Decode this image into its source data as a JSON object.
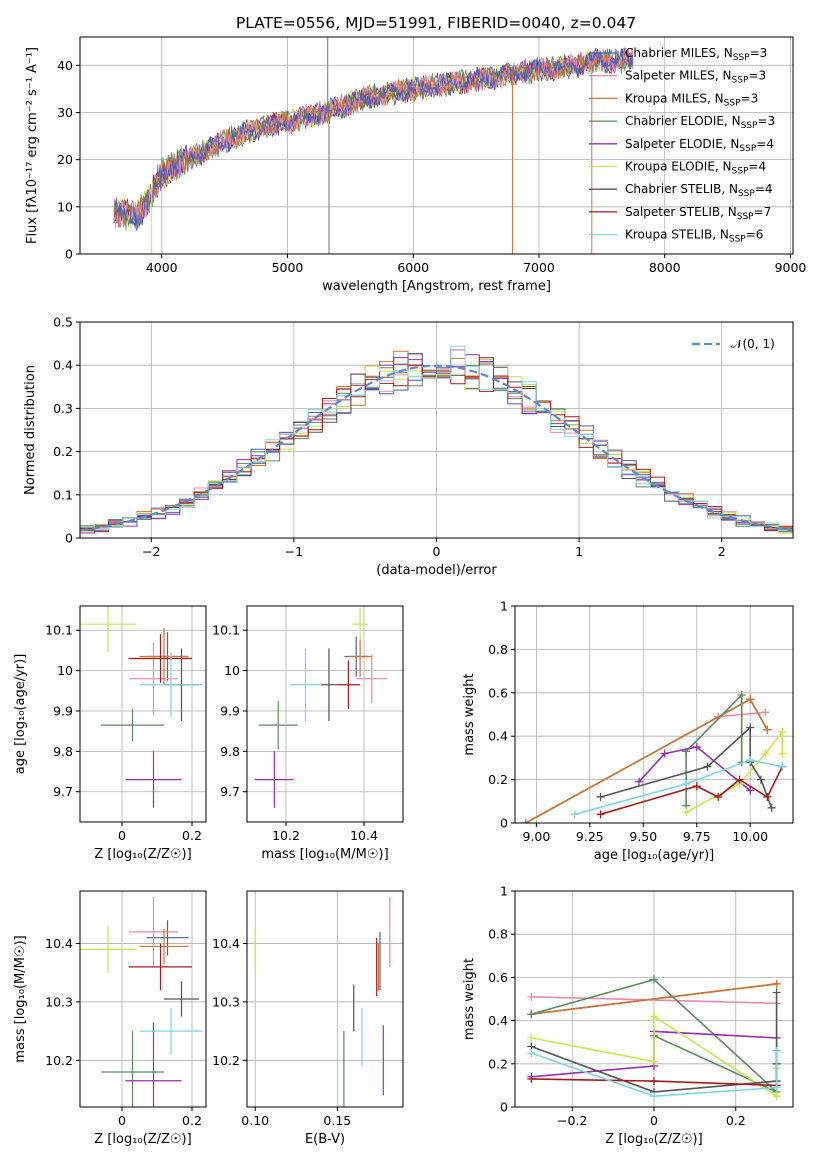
{
  "page_title": "PLATE=0556, MJD=51991, FIBERID=0040, z=0.047",
  "colors": {
    "Chabrier MILES": "#4a5fb8",
    "Salpeter MILES": "#e98ab0",
    "Kroupa MILES": "#d2762a",
    "Chabrier ELODIE": "#5b8a5e",
    "Salpeter ELODIE": "#9a2fb0",
    "Kroupa ELODIE": "#cfe34a",
    "Chabrier STELIB": "#555555",
    "Salpeter STELIB": "#aa1a1a",
    "Kroupa STELIB": "#7fd6e0",
    "normal": "#5b8bd0"
  },
  "legend_spectrum": [
    {
      "name": "Chabrier MILES",
      "pre": "Chabrier MILES, N",
      "sub": "SSP",
      "post": "=3"
    },
    {
      "name": "Salpeter MILES",
      "pre": "Salpeter MILES, N",
      "sub": "SSP",
      "post": "=3"
    },
    {
      "name": "Kroupa MILES",
      "pre": "Kroupa MILES, N",
      "sub": "SSP",
      "post": "=3"
    },
    {
      "name": "Chabrier ELODIE",
      "pre": "Chabrier ELODIE, N",
      "sub": "SSP",
      "post": "=3"
    },
    {
      "name": "Salpeter ELODIE",
      "pre": "Salpeter ELODIE, N",
      "sub": "SSP",
      "post": "=4"
    },
    {
      "name": "Kroupa ELODIE",
      "pre": "Kroupa ELODIE, N",
      "sub": "SSP",
      "post": "=4"
    },
    {
      "name": "Chabrier STELIB",
      "pre": "Chabrier STELIB, N",
      "sub": "SSP",
      "post": "=4"
    },
    {
      "name": "Salpeter STELIB",
      "pre": "Salpeter STELIB, N",
      "sub": "SSP",
      "post": "=7"
    },
    {
      "name": "Kroupa STELIB",
      "pre": "Kroupa STELIB, N",
      "sub": "SSP",
      "post": "=6"
    }
  ],
  "chart_data": [
    {
      "id": "spectrum",
      "type": "line",
      "xlabel": "wavelength [Angstrom, rest frame]",
      "ylabel": "Flux [fλ10⁻¹⁷ erg cm⁻² s⁻¹ A⁻¹]",
      "xlim": [
        3350,
        9020
      ],
      "ylim": [
        0,
        46
      ],
      "xticks": [
        4000,
        5000,
        6000,
        7000,
        8000,
        9000
      ],
      "yticks": [
        0,
        10,
        20,
        30,
        40
      ],
      "continuum": [
        [
          3620,
          9
        ],
        [
          3800,
          8
        ],
        [
          3900,
          12
        ],
        [
          4000,
          17
        ],
        [
          4200,
          20
        ],
        [
          4500,
          24
        ],
        [
          4800,
          27
        ],
        [
          5000,
          28
        ],
        [
          5300,
          30
        ],
        [
          5600,
          33
        ],
        [
          6000,
          35
        ],
        [
          6500,
          37
        ],
        [
          7000,
          39
        ],
        [
          7300,
          40
        ],
        [
          7450,
          41
        ],
        [
          7700,
          41
        ]
      ],
      "spikes": [
        [
          5320,
          46
        ],
        [
          5330,
          0
        ],
        [
          3920,
          0
        ],
        [
          6790,
          0
        ],
        [
          7420,
          0
        ]
      ],
      "wave_min": 3620,
      "wave_max": 7750
    },
    {
      "id": "residuals",
      "type": "histogram",
      "xlabel": "(data-model)/error",
      "ylabel": "Normed distribution",
      "xlim": [
        -2.5,
        2.5
      ],
      "ylim": [
        0,
        0.5
      ],
      "xticks": [
        -2,
        -1,
        0,
        1,
        2
      ],
      "yticks": [
        0,
        0.1,
        0.2,
        0.3,
        0.4,
        0.5
      ],
      "bin_width": 0.1,
      "bins_from": -2.5,
      "normal_curve": {
        "name": "N(0,1)",
        "mean": 0,
        "sigma": 1
      },
      "legend_label": "𝒩(0, 1)"
    },
    {
      "id": "age-vs-Z",
      "type": "errorbar",
      "xlabel": "Z [log₁₀(Z/Z☉)]",
      "ylabel": "age  [log₁₀(age/yr)]",
      "xlim": [
        -0.12,
        0.24
      ],
      "ylim": [
        9.625,
        10.16
      ],
      "xticks": [
        0.0,
        0.2
      ],
      "yticks": [
        9.7,
        9.8,
        9.9,
        10.0,
        10.1
      ],
      "points": [
        {
          "series": "Chabrier MILES",
          "x": 0.13,
          "y": 10.035,
          "xerr": 0.06,
          "yerr": 0.06
        },
        {
          "series": "Salpeter MILES",
          "x": 0.09,
          "y": 9.98,
          "xerr": 0.07,
          "yerr": 0.09
        },
        {
          "series": "Kroupa MILES",
          "x": 0.12,
          "y": 10.035,
          "xerr": 0.07,
          "yerr": 0.07
        },
        {
          "series": "Chabrier ELODIE",
          "x": 0.03,
          "y": 9.865,
          "xerr": 0.09,
          "yerr": 0.04
        },
        {
          "series": "Salpeter ELODIE",
          "x": 0.09,
          "y": 9.73,
          "xerr": 0.08,
          "yerr": 0.07
        },
        {
          "series": "Kroupa ELODIE",
          "x": -0.04,
          "y": 10.115,
          "xerr": 0.08,
          "yerr": 0.07
        },
        {
          "series": "Chabrier STELIB",
          "x": 0.17,
          "y": 9.965,
          "xerr": 0.05,
          "yerr": 0.09
        },
        {
          "series": "Salpeter STELIB",
          "x": 0.11,
          "y": 10.03,
          "xerr": 0.09,
          "yerr": 0.06
        },
        {
          "series": "Kroupa STELIB",
          "x": 0.14,
          "y": 9.965,
          "xerr": 0.09,
          "yerr": 0.08
        }
      ]
    },
    {
      "id": "age-vs-mass",
      "type": "errorbar",
      "xlabel": "mass [log₁₀(M/M☉)]",
      "ylabel": "",
      "xlim": [
        10.1,
        10.5
      ],
      "ylim": [
        9.625,
        10.16
      ],
      "xticks": [
        10.2,
        10.4
      ],
      "yticks": [
        9.7,
        9.8,
        9.9,
        10.0,
        10.1
      ],
      "points": [
        {
          "series": "Chabrier MILES",
          "x": 10.38,
          "y": 10.035,
          "xerr": 0.03,
          "yerr": 0.05
        },
        {
          "series": "Salpeter MILES",
          "x": 10.42,
          "y": 9.98,
          "xerr": 0.04,
          "yerr": 0.06
        },
        {
          "series": "Kroupa MILES",
          "x": 10.39,
          "y": 10.035,
          "xerr": 0.03,
          "yerr": 0.05
        },
        {
          "series": "Chabrier ELODIE",
          "x": 10.18,
          "y": 9.865,
          "xerr": 0.05,
          "yerr": 0.06
        },
        {
          "series": "Salpeter ELODIE",
          "x": 10.17,
          "y": 9.73,
          "xerr": 0.05,
          "yerr": 0.07
        },
        {
          "series": "Kroupa ELODIE",
          "x": 10.39,
          "y": 10.115,
          "xerr": 0.02,
          "yerr": 0.04
        },
        {
          "series": "Chabrier STELIB",
          "x": 10.31,
          "y": 9.965,
          "xerr": 0.02,
          "yerr": 0.09
        },
        {
          "series": "Salpeter STELIB",
          "x": 10.36,
          "y": 9.965,
          "xerr": 0.03,
          "yerr": 0.06
        },
        {
          "series": "Kroupa STELIB",
          "x": 10.25,
          "y": 9.965,
          "xerr": 0.04,
          "yerr": 0.09
        }
      ]
    },
    {
      "id": "massweight-vs-age",
      "type": "line",
      "xlabel": "age  [log₁₀(age/yr)]",
      "ylabel": "mass weight",
      "xlim": [
        8.9,
        10.2
      ],
      "ylim": [
        0.0,
        1.0
      ],
      "xticks": [
        9.0,
        9.25,
        9.5,
        9.75,
        10.0
      ],
      "xtick_labels": [
        "9.00",
        "9.25",
        "9.50",
        "9.75",
        "10.00"
      ],
      "yticks": [
        0.0,
        0.2,
        0.4,
        0.6,
        0.8,
        1.0
      ],
      "series": [
        {
          "name": "Chabrier MILES",
          "points": [
            [
              8.95,
              0.0
            ],
            [
              10.0,
              0.57
            ],
            [
              10.08,
              0.43
            ]
          ]
        },
        {
          "name": "Salpeter MILES",
          "points": [
            [
              9.85,
              0.49
            ],
            [
              10.07,
              0.51
            ]
          ]
        },
        {
          "name": "Kroupa MILES",
          "points": [
            [
              8.95,
              0.0
            ],
            [
              10.0,
              0.57
            ],
            [
              10.08,
              0.43
            ]
          ]
        },
        {
          "name": "Chabrier ELODIE",
          "points": [
            [
              9.7,
              0.08
            ],
            [
              9.7,
              0.33
            ],
            [
              9.96,
              0.59
            ],
            [
              9.96,
              0.28
            ]
          ]
        },
        {
          "name": "Salpeter ELODIE",
          "points": [
            [
              9.48,
              0.19
            ],
            [
              9.6,
              0.32
            ],
            [
              9.75,
              0.35
            ],
            [
              10.0,
              0.15
            ]
          ]
        },
        {
          "name": "Kroupa ELODIE",
          "points": [
            [
              9.7,
              0.05
            ],
            [
              9.95,
              0.18
            ],
            [
              10.07,
              0.32
            ],
            [
              10.15,
              0.42
            ],
            [
              10.15,
              0.32
            ]
          ]
        },
        {
          "name": "Chabrier STELIB",
          "points": [
            [
              9.3,
              0.12
            ],
            [
              9.8,
              0.26
            ],
            [
              10.0,
              0.44
            ],
            [
              10.0,
              0.28
            ],
            [
              10.05,
              0.2
            ],
            [
              10.1,
              0.07
            ]
          ]
        },
        {
          "name": "Salpeter STELIB",
          "points": [
            [
              9.3,
              0.04
            ],
            [
              9.75,
              0.17
            ],
            [
              9.85,
              0.12
            ],
            [
              9.95,
              0.2
            ],
            [
              10.08,
              0.12
            ],
            [
              10.15,
              0.26
            ]
          ]
        },
        {
          "name": "Kroupa STELIB",
          "points": [
            [
              9.18,
              0.04
            ],
            [
              9.7,
              0.18
            ],
            [
              10.0,
              0.29
            ],
            [
              10.15,
              0.26
            ]
          ]
        }
      ]
    },
    {
      "id": "mass-vs-Z",
      "type": "errorbar",
      "xlabel": "Z [log₁₀(Z/Z☉)]",
      "ylabel": "mass [log₁₀(M/M☉)]",
      "xlim": [
        -0.12,
        0.24
      ],
      "ylim": [
        10.12,
        10.49
      ],
      "xticks": [
        0.0,
        0.2
      ],
      "yticks": [
        10.2,
        10.3,
        10.4
      ],
      "points": [
        {
          "series": "Chabrier MILES",
          "x": 0.13,
          "y": 10.41,
          "xerr": 0.06,
          "yerr": 0.03
        },
        {
          "series": "Salpeter MILES",
          "x": 0.09,
          "y": 10.42,
          "xerr": 0.07,
          "yerr": 0.06
        },
        {
          "series": "Kroupa MILES",
          "x": 0.12,
          "y": 10.395,
          "xerr": 0.07,
          "yerr": 0.03
        },
        {
          "series": "Chabrier ELODIE",
          "x": 0.03,
          "y": 10.18,
          "xerr": 0.09,
          "yerr": 0.07
        },
        {
          "series": "Salpeter ELODIE",
          "x": 0.09,
          "y": 10.165,
          "xerr": 0.08,
          "yerr": 0.1
        },
        {
          "series": "Kroupa ELODIE",
          "x": -0.04,
          "y": 10.39,
          "xerr": 0.08,
          "yerr": 0.04
        },
        {
          "series": "Chabrier STELIB",
          "x": 0.17,
          "y": 10.305,
          "xerr": 0.05,
          "yerr": 0.03
        },
        {
          "series": "Salpeter STELIB",
          "x": 0.11,
          "y": 10.36,
          "xerr": 0.09,
          "yerr": 0.04
        },
        {
          "series": "Kroupa STELIB",
          "x": 0.14,
          "y": 10.25,
          "xerr": 0.09,
          "yerr": 0.04
        }
      ]
    },
    {
      "id": "mass-vs-EBV",
      "type": "errorbar",
      "xlabel": "E(B-V)",
      "ylabel": "",
      "xlim": [
        0.095,
        0.19
      ],
      "ylim": [
        10.12,
        10.49
      ],
      "xticks": [
        0.1,
        0.15
      ],
      "xtick_labels": [
        "0.10",
        "0.15"
      ],
      "yticks": [
        10.2,
        10.3,
        10.4
      ],
      "points": [
        {
          "series": "Chabrier MILES",
          "x": 0.176,
          "y": 10.37,
          "xerr": 0,
          "yerr": 0.05
        },
        {
          "series": "Salpeter MILES",
          "x": 0.182,
          "y": 10.42,
          "xerr": 0,
          "yerr": 0.06
        },
        {
          "series": "Kroupa MILES",
          "x": 0.175,
          "y": 10.36,
          "xerr": 0,
          "yerr": 0.04
        },
        {
          "series": "Chabrier ELODIE",
          "x": 0.154,
          "y": 10.17,
          "xerr": 0,
          "yerr": 0.08
        },
        {
          "series": "Salpeter ELODIE",
          "x": 0.178,
          "y": 10.2,
          "xerr": 0,
          "yerr": 0.06
        },
        {
          "series": "Kroupa ELODIE",
          "x": 0.1,
          "y": 10.39,
          "xerr": 0,
          "yerr": 0.04
        },
        {
          "series": "Chabrier STELIB",
          "x": 0.16,
          "y": 10.29,
          "xerr": 0,
          "yerr": 0.04
        },
        {
          "series": "Salpeter STELIB",
          "x": 0.174,
          "y": 10.36,
          "xerr": 0,
          "yerr": 0.05
        },
        {
          "series": "Kroupa STELIB",
          "x": 0.165,
          "y": 10.24,
          "xerr": 0,
          "yerr": 0.05
        }
      ]
    },
    {
      "id": "massweight-vs-Z",
      "type": "line",
      "xlabel": "Z [log₁₀(Z/Z☉)]",
      "ylabel": "mass weight",
      "xlim": [
        -0.34,
        0.34
      ],
      "ylim": [
        0.0,
        1.0
      ],
      "xticks": [
        -0.2,
        0.0,
        0.2
      ],
      "yticks": [
        0.0,
        0.2,
        0.4,
        0.6,
        0.8,
        1.0
      ],
      "series": [
        {
          "name": "Chabrier MILES",
          "points": [
            [
              -0.3,
              0.43
            ],
            [
              0.3,
              0.57
            ]
          ]
        },
        {
          "name": "Salpeter MILES",
          "points": [
            [
              -0.3,
              0.51
            ],
            [
              0.3,
              0.48
            ]
          ]
        },
        {
          "name": "Kroupa MILES",
          "points": [
            [
              -0.3,
              0.43
            ],
            [
              0.3,
              0.57
            ]
          ]
        },
        {
          "name": "Chabrier ELODIE",
          "points": [
            [
              -0.3,
              0.43
            ],
            [
              0.0,
              0.59
            ],
            [
              0.3,
              0.07
            ],
            [
              0.0,
              0.33
            ]
          ]
        },
        {
          "name": "Salpeter ELODIE",
          "points": [
            [
              -0.3,
              0.14
            ],
            [
              0.0,
              0.19
            ],
            [
              0.0,
              0.35
            ],
            [
              0.3,
              0.32
            ]
          ]
        },
        {
          "name": "Kroupa ELODIE",
          "points": [
            [
              -0.3,
              0.32
            ],
            [
              0.0,
              0.21
            ],
            [
              0.0,
              0.42
            ],
            [
              0.3,
              0.05
            ],
            [
              0.3,
              0.18
            ]
          ]
        },
        {
          "name": "Chabrier STELIB",
          "points": [
            [
              -0.3,
              0.28
            ],
            [
              0.0,
              0.07
            ],
            [
              0.3,
              0.12
            ],
            [
              0.3,
              0.53
            ],
            [
              0.3,
              0.2
            ]
          ]
        },
        {
          "name": "Salpeter STELIB",
          "points": [
            [
              -0.3,
              0.13
            ],
            [
              0.0,
              0.12
            ],
            [
              0.3,
              0.1
            ],
            [
              0.3,
              0.26
            ]
          ]
        },
        {
          "name": "Kroupa STELIB",
          "points": [
            [
              -0.3,
              0.25
            ],
            [
              0.0,
              0.05
            ],
            [
              0.3,
              0.09
            ],
            [
              0.3,
              0.26
            ]
          ]
        }
      ]
    }
  ]
}
